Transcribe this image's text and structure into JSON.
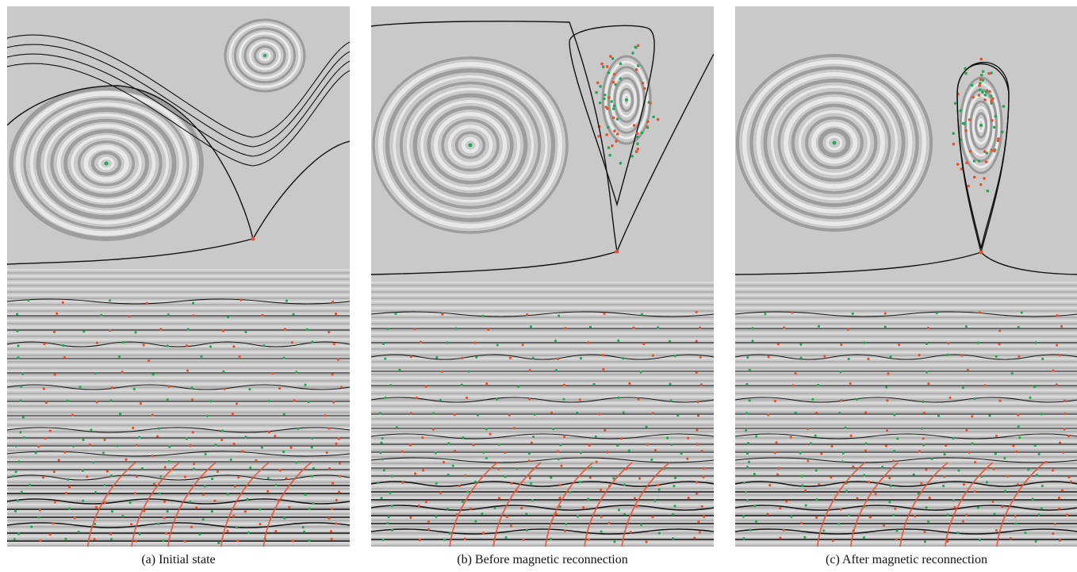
{
  "figure": {
    "panels": [
      {
        "caption": "(a)  Initial state",
        "stage": "initial",
        "island_shape": "broad arch from top boundary",
        "x_point_position": "center-left"
      },
      {
        "caption": "(b)  Before magnetic reconnection",
        "stage": "before",
        "island_shape": "elongated triangular island near top-right",
        "x_point_position": "center-right"
      },
      {
        "caption": "(c)  After magnetic reconnection",
        "stage": "after",
        "island_shape": "narrow teardrop island near top-right",
        "x_point_position": "center-right"
      }
    ],
    "colors": {
      "background": "#c9c9c9",
      "streak_light": "#f2f2f2",
      "streak_dark": "#8e8e8e",
      "separatrix": "#111111",
      "periodic_point_red": "#e8512e",
      "periodic_point_green": "#23a85a"
    }
  }
}
